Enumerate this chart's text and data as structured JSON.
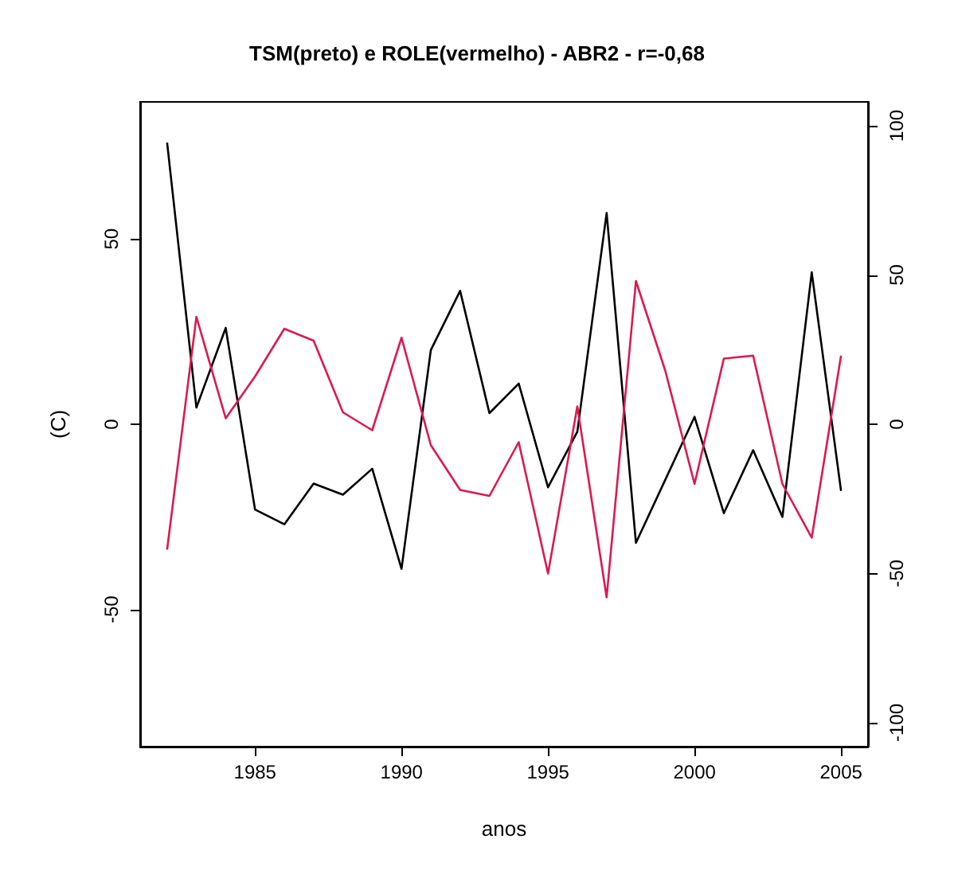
{
  "chart_data": {
    "type": "line",
    "title": "TSM(preto) e ROLE(vermelho) - ABR2 - r=-0,68",
    "xlabel": "anos",
    "ylabel": "(C)",
    "x": [
      1982,
      1983,
      1984,
      1985,
      1986,
      1987,
      1988,
      1989,
      1990,
      1991,
      1992,
      1993,
      1994,
      1995,
      1996,
      1997,
      1998,
      1999,
      2000,
      2001,
      2002,
      2003,
      2004,
      2005
    ],
    "series": [
      {
        "color": "#000000",
        "axis": "y",
        "values": [
          76,
          4.5,
          26,
          -23,
          -27,
          -16,
          -19,
          -12,
          -39,
          20,
          36,
          3,
          11,
          -17,
          -2,
          57,
          -32,
          -15,
          2,
          -24,
          -7,
          -25,
          41,
          -18
        ]
      },
      {
        "color": "#d81b4f",
        "axis": "y2",
        "values": [
          -42,
          36,
          2,
          16,
          32,
          28,
          4,
          -2,
          29,
          -7,
          -22,
          -24,
          -6,
          -50,
          6,
          -58,
          48,
          18,
          -20,
          22,
          23,
          -20,
          -38,
          23
        ]
      }
    ],
    "xlim": [
      1981.08,
      2005.92
    ],
    "xticks": [
      1985,
      1990,
      1995,
      2000,
      2005
    ],
    "ylim": [
      -87,
      87
    ],
    "yticks": [
      -50,
      0,
      50
    ],
    "y2lim": [
      -108,
      108
    ],
    "y2ticks": [
      -100,
      -50,
      0,
      50,
      100
    ],
    "grid": false,
    "marker": "none",
    "line_style": "solid"
  }
}
